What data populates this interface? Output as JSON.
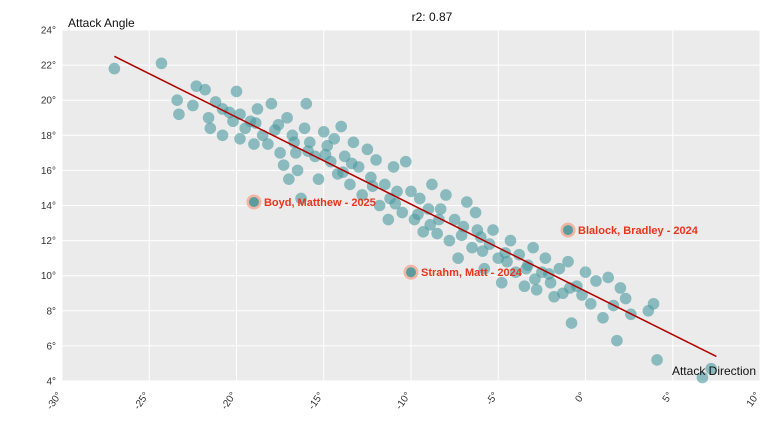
{
  "chart_data": {
    "type": "scatter",
    "title": "r2: 0.87",
    "xlabel": "Attack Direction",
    "ylabel": "Attack Angle",
    "xlim": [
      -30,
      10
    ],
    "ylim": [
      4,
      24
    ],
    "x_ticks": [
      -30,
      -25,
      -20,
      -15,
      -10,
      -5,
      0,
      5,
      10
    ],
    "y_ticks": [
      4,
      6,
      8,
      10,
      12,
      14,
      16,
      18,
      20,
      22,
      24
    ],
    "x_tick_labels": [
      "-30°",
      "-25°",
      "-20°",
      "-15°",
      "-10°",
      "-5°",
      "0°",
      "5°",
      "10°"
    ],
    "y_tick_labels": [
      "4°",
      "6°",
      "8°",
      "10°",
      "12°",
      "14°",
      "16°",
      "18°",
      "20°",
      "22°",
      "24°"
    ],
    "grid": true,
    "colors": {
      "points": "#4a9a9e",
      "trendline": "#b30000",
      "highlight_text": "#e8341c",
      "highlight_ring": "#f3b5a3",
      "background": "#ebebeb",
      "grid": "#ffffff"
    },
    "trendline": {
      "x": [
        -27,
        7.5
      ],
      "y": [
        22.5,
        5.4
      ]
    },
    "highlights": [
      {
        "label": "Boyd, Matthew - 2025",
        "x": -19,
        "y": 14.2
      },
      {
        "label": "Blalock, Bradley - 2024",
        "x": -1,
        "y": 12.6
      },
      {
        "label": "Strahm, Matt - 2024",
        "x": -10,
        "y": 10.2
      }
    ],
    "points": [
      [
        -27,
        21.8
      ],
      [
        -24.3,
        22.1
      ],
      [
        -23.4,
        20
      ],
      [
        -23.3,
        19.2
      ],
      [
        -22.5,
        19.7
      ],
      [
        -22.3,
        20.8
      ],
      [
        -21.8,
        20.6
      ],
      [
        -21.6,
        19
      ],
      [
        -21.5,
        18.4
      ],
      [
        -21.2,
        19.9
      ],
      [
        -20.8,
        19.5
      ],
      [
        -20.8,
        18
      ],
      [
        -20.2,
        18.8
      ],
      [
        -20,
        20.5
      ],
      [
        -19.8,
        19.2
      ],
      [
        -19.8,
        17.8
      ],
      [
        -19.5,
        18.4
      ],
      [
        -19.2,
        18.8
      ],
      [
        -19,
        17.5
      ],
      [
        -18.8,
        19.5
      ],
      [
        -18.5,
        18
      ],
      [
        -18.2,
        17.5
      ],
      [
        -18,
        19.8
      ],
      [
        -17.8,
        18.3
      ],
      [
        -17.5,
        17
      ],
      [
        -17.3,
        16.3
      ],
      [
        -17.1,
        19
      ],
      [
        -17,
        15.5
      ],
      [
        -16.8,
        18
      ],
      [
        -16.6,
        17
      ],
      [
        -16.5,
        16
      ],
      [
        -16.3,
        14.4
      ],
      [
        -16.1,
        18.4
      ],
      [
        -16,
        19.8
      ],
      [
        -15.8,
        17.6
      ],
      [
        -15.5,
        16.8
      ],
      [
        -15.3,
        15.5
      ],
      [
        -15,
        18.2
      ],
      [
        -14.8,
        17.4
      ],
      [
        -14.6,
        16.5
      ],
      [
        -14.4,
        17.8
      ],
      [
        -14.2,
        15.8
      ],
      [
        -14,
        18.5
      ],
      [
        -13.8,
        16.8
      ],
      [
        -13.5,
        15.2
      ],
      [
        -13.3,
        17.6
      ],
      [
        -13,
        16.2
      ],
      [
        -12.8,
        14.6
      ],
      [
        -12.5,
        17.2
      ],
      [
        -12.3,
        15.6
      ],
      [
        -12,
        16.6
      ],
      [
        -11.8,
        14
      ],
      [
        -11.5,
        15.2
      ],
      [
        -11.3,
        13.2
      ],
      [
        -11,
        16.2
      ],
      [
        -10.8,
        14.8
      ],
      [
        -10.5,
        13.6
      ],
      [
        -10.3,
        16.5
      ],
      [
        -10,
        14.8
      ],
      [
        -9.8,
        13.2
      ],
      [
        -9.5,
        14.4
      ],
      [
        -9.3,
        12.5
      ],
      [
        -9,
        13.8
      ],
      [
        -8.8,
        15.2
      ],
      [
        -8.5,
        12.4
      ],
      [
        -8.3,
        13.8
      ],
      [
        -8,
        14.6
      ],
      [
        -7.8,
        12
      ],
      [
        -7.5,
        13.2
      ],
      [
        -7.3,
        11
      ],
      [
        -7,
        12.8
      ],
      [
        -6.8,
        14.2
      ],
      [
        -6.5,
        11.6
      ],
      [
        -6.3,
        13.6
      ],
      [
        -6,
        12.2
      ],
      [
        -5.8,
        10.4
      ],
      [
        -5.5,
        11.8
      ],
      [
        -5.3,
        12.6
      ],
      [
        -5,
        11
      ],
      [
        -4.8,
        9.6
      ],
      [
        -4.5,
        10.8
      ],
      [
        -4.3,
        12
      ],
      [
        -4,
        10.2
      ],
      [
        -3.8,
        11.2
      ],
      [
        -3.5,
        9.4
      ],
      [
        -3.3,
        10.6
      ],
      [
        -3,
        11.6
      ],
      [
        -2.8,
        9.2
      ],
      [
        -2.5,
        10.2
      ],
      [
        -2.3,
        11
      ],
      [
        -2,
        9.6
      ],
      [
        -1.8,
        8.8
      ],
      [
        -1.5,
        10.4
      ],
      [
        -1.3,
        9
      ],
      [
        -1,
        10.8
      ],
      [
        -0.8,
        7.3
      ],
      [
        -0.5,
        9.4
      ],
      [
        0,
        10.2
      ],
      [
        0.3,
        8.4
      ],
      [
        0.6,
        9.7
      ],
      [
        1,
        7.6
      ],
      [
        1.3,
        9.9
      ],
      [
        1.6,
        8.3
      ],
      [
        2,
        9.3
      ],
      [
        2.3,
        8.7
      ],
      [
        2.6,
        7.8
      ],
      [
        3.6,
        8
      ],
      [
        3.9,
        8.4
      ],
      [
        1.8,
        6.3
      ],
      [
        4.1,
        5.2
      ],
      [
        6.7,
        4.2
      ],
      [
        7.2,
        4.7
      ],
      [
        -17.6,
        18.6
      ],
      [
        -14.9,
        16.9
      ],
      [
        -12.2,
        15.1
      ],
      [
        -9.6,
        13.5
      ],
      [
        -7.1,
        12.3
      ],
      [
        -4.6,
        11.3
      ],
      [
        -2.1,
        10.1
      ],
      [
        -18.9,
        18.7
      ],
      [
        -16.7,
        17.6
      ],
      [
        -13.9,
        15.9
      ],
      [
        -11.2,
        14.4
      ],
      [
        -8.4,
        13.2
      ],
      [
        -5.9,
        11.4
      ],
      [
        -3.4,
        10.4
      ],
      [
        -0.9,
        9.3
      ],
      [
        -20.4,
        19.3
      ],
      [
        -15.9,
        17.1
      ],
      [
        -13.4,
        16.4
      ],
      [
        -10.9,
        14.1
      ],
      [
        -8.9,
        12.9
      ],
      [
        -6.2,
        12.6
      ],
      [
        -2.9,
        9.8
      ],
      [
        -0.2,
        8.9
      ]
    ]
  }
}
